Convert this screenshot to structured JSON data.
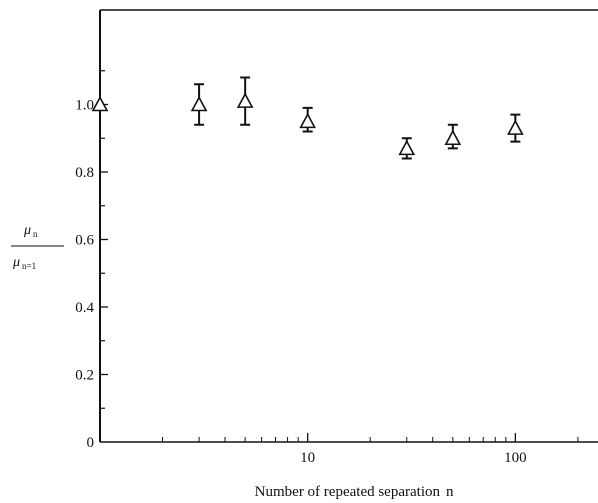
{
  "chart_data": {
    "type": "scatter",
    "xscale": "log",
    "xlim": [
      1,
      250
    ],
    "ylim": [
      0,
      1.28
    ],
    "xlabel": "Number of repeated separation",
    "xlabel_symbol": "n",
    "ylabel": {
      "num_symbol": "μ",
      "num_sub": "n",
      "den_symbol": "μ",
      "den_sub": "n=1"
    },
    "x_ticks": [
      {
        "value": 10,
        "label": "10"
      },
      {
        "value": 100,
        "label": "100"
      }
    ],
    "y_ticks": [
      {
        "value": 0,
        "label": "0"
      },
      {
        "value": 0.2,
        "label": "0.2"
      },
      {
        "value": 0.4,
        "label": "0.4"
      },
      {
        "value": 0.6,
        "label": "0.6"
      },
      {
        "value": 0.8,
        "label": "0.8"
      },
      {
        "value": 1.0,
        "label": "1.0"
      }
    ],
    "grid": false,
    "series": [
      {
        "marker": "triangle-open",
        "points": [
          {
            "x": 1,
            "y": 1.0,
            "err_low": 1.0,
            "err_high": 1.0
          },
          {
            "x": 3,
            "y": 1.0,
            "err_low": 0.94,
            "err_high": 1.06
          },
          {
            "x": 5,
            "y": 1.01,
            "err_low": 0.94,
            "err_high": 1.08
          },
          {
            "x": 10,
            "y": 0.95,
            "err_low": 0.92,
            "err_high": 0.99
          },
          {
            "x": 30,
            "y": 0.87,
            "err_low": 0.84,
            "err_high": 0.9
          },
          {
            "x": 50,
            "y": 0.9,
            "err_low": 0.87,
            "err_high": 0.94
          },
          {
            "x": 100,
            "y": 0.93,
            "err_low": 0.89,
            "err_high": 0.97
          }
        ]
      }
    ]
  }
}
